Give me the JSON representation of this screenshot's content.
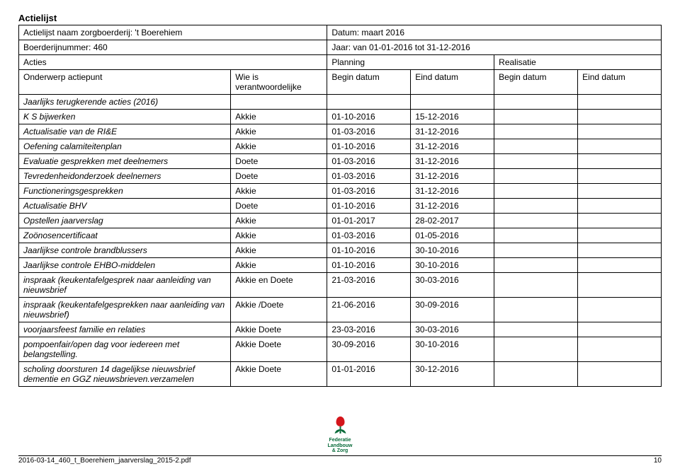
{
  "heading": "Actielijst",
  "header_rows": {
    "r1": {
      "left": "Actielijst naam zorgboerderij: 't Boerehiem",
      "right": "Datum: maart 2016"
    },
    "r2": {
      "left": "Boerderijnummer: 460",
      "right": "Jaar: van 01-01-2016 tot 31-12-2016"
    },
    "r3": {
      "c1": "Acties",
      "c2": "Planning",
      "c3": "Realisatie"
    },
    "r4": {
      "c1": "Onderwerp actiepunt",
      "c2": "Wie is verantwoordelijke",
      "c3": "Begin datum",
      "c4": "Eind datum",
      "c5": "Begin datum",
      "c6": "Eind datum"
    },
    "r5": {
      "c1": "Jaarlijks terugkerende acties (2016)"
    }
  },
  "rows": [
    {
      "c1": "K S bijwerken",
      "c2": "Akkie",
      "c3": "01-10-2016",
      "c4": "15-12-2016",
      "c5": "",
      "c6": ""
    },
    {
      "c1": "Actualisatie van de RI&E",
      "c2": "Akkie",
      "c3": "01-03-2016",
      "c4": "31-12-2016",
      "c5": "",
      "c6": ""
    },
    {
      "c1": "Oefening calamiteitenplan",
      "c2": "Akkie",
      "c3": "01-10-2016",
      "c4": "31-12-2016",
      "c5": "",
      "c6": ""
    },
    {
      "c1": "Evaluatie gesprekken met deelnemers",
      "c2": "Doete",
      "c3": "01-03-2016",
      "c4": "31-12-2016",
      "c5": "",
      "c6": ""
    },
    {
      "c1": "Tevredenheidonderzoek deelnemers",
      "c2": "Doete",
      "c3": "01-03-2016",
      "c4": "31-12-2016",
      "c5": "",
      "c6": ""
    },
    {
      "c1": "Functioneringsgesprekken",
      "c2": "Akkie",
      "c3": "01-03-2016",
      "c4": "31-12-2016",
      "c5": "",
      "c6": ""
    },
    {
      "c1": "Actualisatie BHV",
      "c2": "Doete",
      "c3": "01-10-2016",
      "c4": "31-12-2016",
      "c5": "",
      "c6": ""
    },
    {
      "c1": "Opstellen jaarverslag",
      "c2": "Akkie",
      "c3": "01-01-2017",
      "c4": "28-02-2017",
      "c5": "",
      "c6": ""
    },
    {
      "c1": "Zoönosencertificaat",
      "c2": "Akkie",
      "c3": "01-03-2016",
      "c4": "01-05-2016",
      "c5": "",
      "c6": ""
    },
    {
      "c1": "Jaarlijkse controle brandblussers",
      "c2": "Akkie",
      "c3": "01-10-2016",
      "c4": "30-10-2016",
      "c5": "",
      "c6": ""
    },
    {
      "c1": "Jaarlijkse controle EHBO-middelen",
      "c2": "Akkie",
      "c3": "01-10-2016",
      "c4": "30-10-2016",
      "c5": "",
      "c6": ""
    },
    {
      "c1": "inspraak (keukentafelgesprek naar aanleiding van nieuwsbrief",
      "c2": "Akkie en Doete",
      "c3": "21-03-2016",
      "c4": "30-03-2016",
      "c5": "",
      "c6": ""
    },
    {
      "c1": "inspraak (keukentafelgesprekken naar aanleiding van nieuwsbrief)",
      "c2": "Akkie /Doete",
      "c3": "21-06-2016",
      "c4": "30-09-2016",
      "c5": "",
      "c6": ""
    },
    {
      "c1": "voorjaarsfeest familie en relaties",
      "c2": "Akkie Doete",
      "c3": "23-03-2016",
      "c4": "30-03-2016",
      "c5": "",
      "c6": ""
    },
    {
      "c1": "pompoenfair/open dag voor iedereen met belangstelling.",
      "c2": "Akkie Doete",
      "c3": "30-09-2016",
      "c4": "30-10-2016",
      "c5": "",
      "c6": ""
    },
    {
      "c1": "scholing doorsturen 14 dagelijkse nieuwsbrief dementie en GGZ nieuwsbrieven.verzamelen",
      "c2": "Akkie Doete",
      "c3": "01-01-2016",
      "c4": "30-12-2016",
      "c5": "",
      "c6": ""
    }
  ],
  "logo": {
    "line1": "Federatie",
    "line2": "Landbouw",
    "line3": "& Zorg",
    "red": "#d4151b",
    "green": "#0a6b3a"
  },
  "footer": {
    "filename": "2016-03-14_460_t_Boerehiem_jaarverslag_2015-2.pdf",
    "page": "10"
  }
}
